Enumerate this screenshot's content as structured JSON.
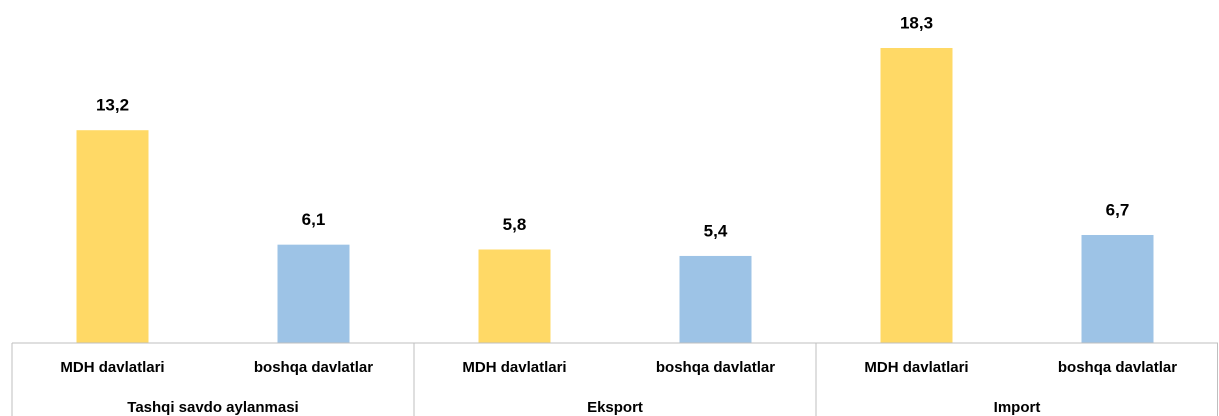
{
  "chart_data": {
    "type": "bar",
    "categories": [
      "MDH davlatlari",
      "boshqa davlatlar",
      "MDH davlatlari",
      "boshqa davlatlar",
      "MDH davlatlari",
      "boshqa davlatlar"
    ],
    "groups": [
      "Tashqi savdo aylanmasi",
      "Eksport",
      "Import"
    ],
    "values": [
      13.2,
      6.1,
      5.8,
      5.4,
      18.3,
      6.7
    ],
    "value_labels": [
      "13,2",
      "6,1",
      "5,8",
      "5,4",
      "18,3",
      "6,7"
    ],
    "colors": [
      "#FFD966",
      "#9DC3E6",
      "#FFD966",
      "#9DC3E6",
      "#FFD966",
      "#9DC3E6"
    ]
  }
}
